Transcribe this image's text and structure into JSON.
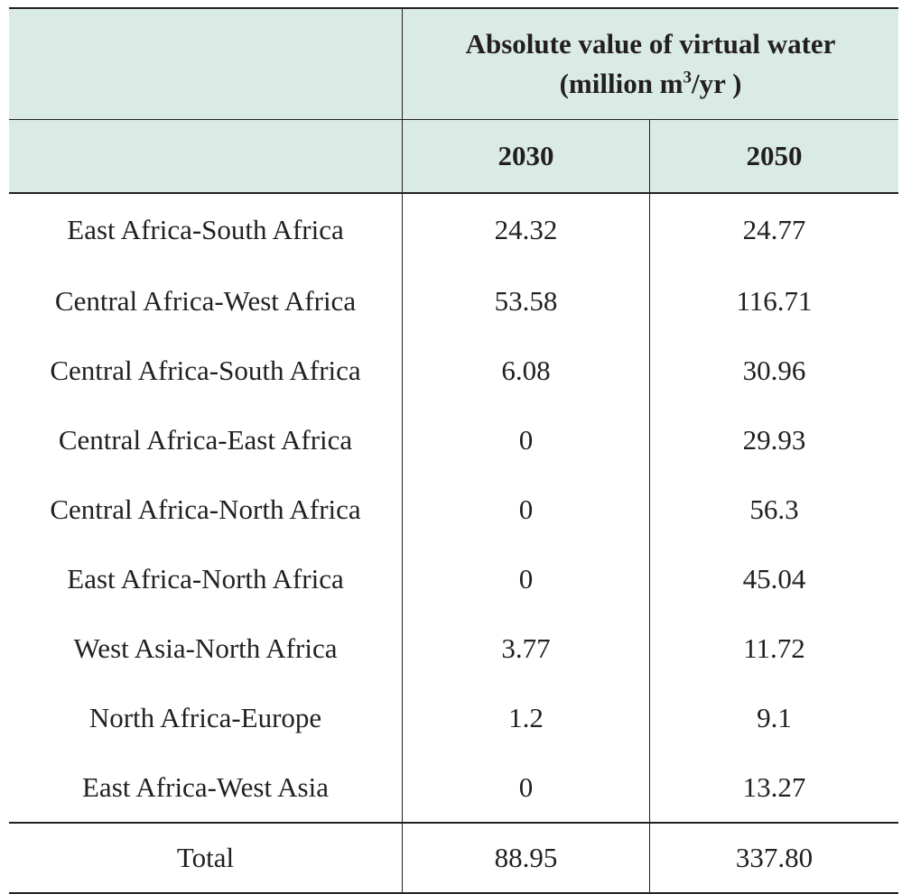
{
  "table": {
    "header": {
      "title_line1": "Absolute value of virtual water",
      "title_line2_pre": "(million m",
      "title_line2_sup": "3",
      "title_line2_post": "/yr )",
      "years": [
        "2030",
        "2050"
      ]
    },
    "rows": [
      {
        "label": "East Africa-South Africa",
        "v2030": "24.32",
        "v2050": "24.77"
      },
      {
        "label": "Central Africa-West Africa",
        "v2030": "53.58",
        "v2050": "116.71"
      },
      {
        "label": "Central Africa-South Africa",
        "v2030": "6.08",
        "v2050": "30.96"
      },
      {
        "label": "Central Africa-East Africa",
        "v2030": "0",
        "v2050": "29.93"
      },
      {
        "label": "Central Africa-North Africa",
        "v2030": "0",
        "v2050": "56.3"
      },
      {
        "label": "East Africa-North Africa",
        "v2030": "0",
        "v2050": "45.04"
      },
      {
        "label": "West Asia-North Africa",
        "v2030": "3.77",
        "v2050": "11.72"
      },
      {
        "label": "North Africa-Europe",
        "v2030": "1.2",
        "v2050": "9.1"
      },
      {
        "label": "East Africa-West Asia",
        "v2030": "0",
        "v2050": "13.27"
      }
    ],
    "total": {
      "label": "Total",
      "v2030": "88.95",
      "v2050": "337.80"
    }
  }
}
